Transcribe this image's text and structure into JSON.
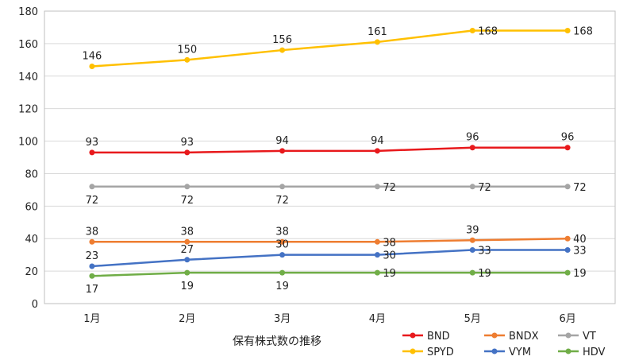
{
  "chart_data": {
    "type": "line",
    "title": "",
    "xlabel": "保有株式数の推移",
    "ylabel": "",
    "categories": [
      "1月",
      "2月",
      "3月",
      "4月",
      "5月",
      "6月"
    ],
    "ylim": [
      0,
      180
    ],
    "yticks": [
      0,
      20,
      40,
      60,
      80,
      100,
      120,
      140,
      160,
      180
    ],
    "grid": true,
    "legend": "bottom-right",
    "series": [
      {
        "name": "BND",
        "color": "#e8191c",
        "values": [
          93,
          93,
          94,
          94,
          96,
          96
        ],
        "label_pos": [
          "above",
          "above",
          "above",
          "above",
          "above",
          "above"
        ]
      },
      {
        "name": "BNDX",
        "color": "#ee7d31",
        "values": [
          38,
          38,
          38,
          38,
          39,
          40
        ],
        "label_pos": [
          "above",
          "above",
          "above",
          "right",
          "above",
          "right"
        ]
      },
      {
        "name": "VT",
        "color": "#a5a5a5",
        "values": [
          72,
          72,
          72,
          72,
          72,
          72
        ],
        "label_pos": [
          "below",
          "below",
          "below",
          "right",
          "right",
          "right"
        ]
      },
      {
        "name": "SPYD",
        "color": "#ffc000",
        "values": [
          146,
          150,
          156,
          161,
          168,
          168
        ],
        "label_pos": [
          "above",
          "above",
          "above",
          "above",
          "right",
          "right"
        ]
      },
      {
        "name": "VYM",
        "color": "#4472c4",
        "values": [
          23,
          27,
          30,
          30,
          33,
          33
        ],
        "label_pos": [
          "above",
          "above",
          "above",
          "right",
          "right",
          "right"
        ]
      },
      {
        "name": "HDV",
        "color": "#70ad47",
        "values": [
          17,
          19,
          19,
          19,
          19,
          19
        ],
        "label_pos": [
          "below",
          "below",
          "below",
          "right",
          "right",
          "right"
        ]
      }
    ]
  }
}
